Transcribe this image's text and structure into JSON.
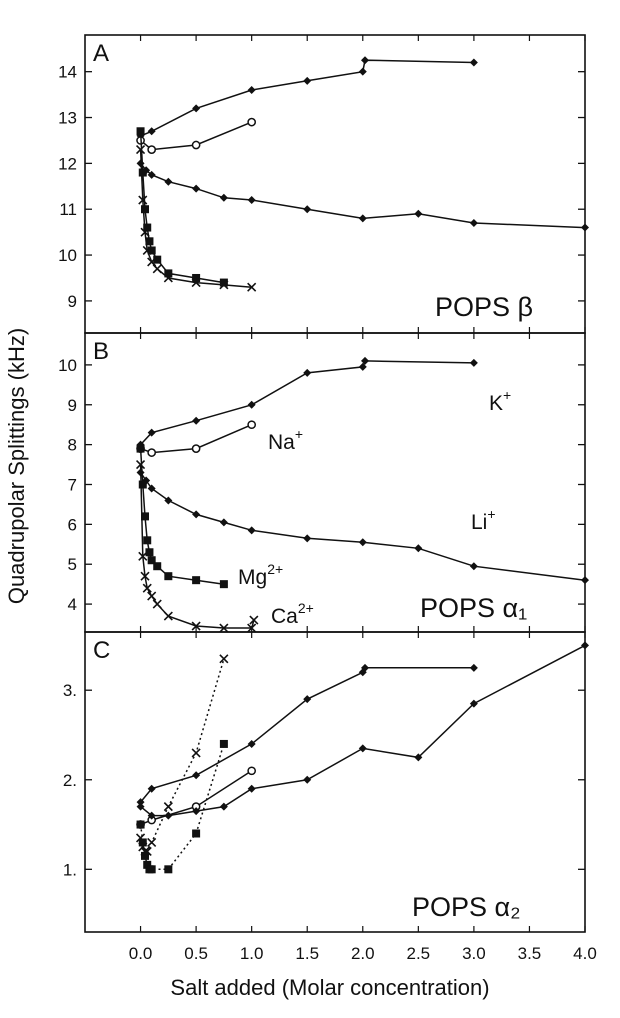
{
  "figure": {
    "ylabel": "Quadrupolar Splittings (kHz)",
    "xlabel": "Salt added (Molar concentration)",
    "xlim": [
      -0.5,
      4.0
    ],
    "xticks": [
      "0.0",
      "0.5",
      "1.0",
      "1.5",
      "2.0",
      "2.5",
      "3.0",
      "3.5",
      "4.0"
    ]
  },
  "chart_data": [
    {
      "type": "line",
      "panel": "A",
      "title": "POPS β",
      "xlim": [
        -0.5,
        4.0
      ],
      "ylim": [
        8.3,
        14.8
      ],
      "yticks": [
        "9",
        "10",
        "11",
        "12",
        "13",
        "14"
      ],
      "series": [
        {
          "marker": "diamond",
          "line": "solid",
          "x": [
            0.0,
            0.1,
            0.5,
            1.0,
            1.5,
            2.0,
            2.02,
            3.0
          ],
          "y": [
            12.6,
            12.7,
            13.2,
            13.6,
            13.8,
            14.0,
            14.25,
            14.2
          ]
        },
        {
          "marker": "circle",
          "line": "solid",
          "x": [
            0.0,
            0.1,
            0.5,
            1.0
          ],
          "y": [
            12.5,
            12.3,
            12.4,
            12.9
          ]
        },
        {
          "marker": "diamond",
          "line": "solid",
          "x": [
            0.0,
            0.05,
            0.1,
            0.25,
            0.5,
            0.75,
            1.0,
            1.5,
            2.0,
            2.5,
            3.0,
            4.0
          ],
          "y": [
            12.0,
            11.85,
            11.75,
            11.6,
            11.45,
            11.25,
            11.2,
            11.0,
            10.8,
            10.9,
            10.7,
            10.6
          ]
        },
        {
          "marker": "square",
          "line": "solid",
          "x": [
            0.0,
            0.02,
            0.04,
            0.06,
            0.08,
            0.1,
            0.15,
            0.25,
            0.5,
            0.75
          ],
          "y": [
            12.7,
            11.8,
            11.0,
            10.6,
            10.3,
            10.1,
            9.9,
            9.6,
            9.5,
            9.4
          ]
        },
        {
          "marker": "cross",
          "line": "solid",
          "x": [
            0.0,
            0.02,
            0.04,
            0.06,
            0.1,
            0.15,
            0.25,
            0.5,
            0.75,
            1.0
          ],
          "y": [
            12.3,
            11.2,
            10.5,
            10.1,
            9.85,
            9.7,
            9.5,
            9.4,
            9.35,
            9.3
          ]
        }
      ]
    },
    {
      "type": "line",
      "panel": "B",
      "title": "POPS α₁",
      "xlim": [
        -0.5,
        4.0
      ],
      "ylim": [
        3.3,
        10.8
      ],
      "yticks": [
        "4",
        "5",
        "6",
        "7",
        "8",
        "9",
        "10"
      ],
      "series": [
        {
          "name": "K+",
          "marker": "diamond",
          "line": "solid",
          "x": [
            0.0,
            0.1,
            0.5,
            1.0,
            1.5,
            2.0,
            2.02,
            3.0
          ],
          "y": [
            8.0,
            8.3,
            8.6,
            9.0,
            9.8,
            9.95,
            10.1,
            10.05
          ]
        },
        {
          "name": "Na+",
          "marker": "circle",
          "line": "solid",
          "x": [
            0.0,
            0.1,
            0.5,
            1.0
          ],
          "y": [
            7.9,
            7.8,
            7.9,
            8.5
          ]
        },
        {
          "name": "Li+",
          "marker": "diamond",
          "line": "solid",
          "x": [
            0.0,
            0.05,
            0.1,
            0.25,
            0.5,
            0.75,
            1.0,
            1.5,
            2.0,
            2.5,
            3.0,
            4.0
          ],
          "y": [
            7.3,
            7.1,
            6.9,
            6.6,
            6.25,
            6.05,
            5.85,
            5.65,
            5.55,
            5.4,
            4.95,
            4.6
          ]
        },
        {
          "name": "Mg2+",
          "marker": "square",
          "line": "solid",
          "x": [
            0.0,
            0.02,
            0.04,
            0.06,
            0.08,
            0.1,
            0.15,
            0.25,
            0.5,
            0.75
          ],
          "y": [
            7.9,
            7.0,
            6.2,
            5.6,
            5.3,
            5.1,
            4.95,
            4.7,
            4.6,
            4.5
          ]
        },
        {
          "name": "Ca2+",
          "marker": "cross",
          "line": "solid",
          "x": [
            0.0,
            0.02,
            0.04,
            0.06,
            0.1,
            0.15,
            0.25,
            0.5,
            0.75,
            1.0,
            1.02
          ],
          "y": [
            7.5,
            5.2,
            4.7,
            4.4,
            4.2,
            4.0,
            3.7,
            3.45,
            3.4,
            3.4,
            3.6
          ]
        }
      ],
      "labels": [
        {
          "series": "K+",
          "text": "K",
          "sup": "+"
        },
        {
          "series": "Na+",
          "text": "Na",
          "sup": "+"
        },
        {
          "series": "Li+",
          "text": "Li",
          "sup": "+"
        },
        {
          "series": "Mg2+",
          "text": "Mg",
          "sup": "2+"
        },
        {
          "series": "Ca2+",
          "text": "Ca",
          "sup": "2+"
        }
      ]
    },
    {
      "type": "line",
      "panel": "C",
      "title": "POPS α₂",
      "xlim": [
        -0.5,
        4.0
      ],
      "ylim": [
        0.3,
        3.65
      ],
      "yticks": [
        "1.",
        "2.",
        "3."
      ],
      "series": [
        {
          "marker": "diamond",
          "line": "solid",
          "x": [
            0.0,
            0.1,
            0.5,
            1.0,
            1.5,
            2.0,
            2.02,
            3.0
          ],
          "y": [
            1.75,
            1.9,
            2.05,
            2.4,
            2.9,
            3.2,
            3.25,
            3.25
          ]
        },
        {
          "marker": "circle",
          "line": "solid",
          "x": [
            0.0,
            0.1,
            0.5,
            1.0
          ],
          "y": [
            1.5,
            1.55,
            1.7,
            2.1
          ]
        },
        {
          "marker": "diamond",
          "line": "solid",
          "x": [
            0.0,
            0.1,
            0.25,
            0.5,
            0.75,
            1.0,
            1.5,
            2.0,
            2.5,
            3.0,
            4.0
          ],
          "y": [
            1.7,
            1.6,
            1.6,
            1.65,
            1.7,
            1.9,
            2.0,
            2.35,
            2.25,
            2.85,
            3.5
          ]
        },
        {
          "marker": "square",
          "line": "dotted",
          "x": [
            0.0,
            0.02,
            0.04,
            0.06,
            0.08,
            0.1,
            0.25,
            0.5,
            0.75
          ],
          "y": [
            1.5,
            1.3,
            1.15,
            1.05,
            1.0,
            1.0,
            1.0,
            1.4,
            2.4
          ]
        },
        {
          "marker": "cross",
          "line": "dotted",
          "x": [
            0.0,
            0.02,
            0.04,
            0.06,
            0.1,
            0.25,
            0.5,
            0.75
          ],
          "y": [
            1.35,
            1.25,
            1.2,
            1.2,
            1.3,
            1.7,
            2.3,
            3.35
          ]
        }
      ]
    }
  ]
}
